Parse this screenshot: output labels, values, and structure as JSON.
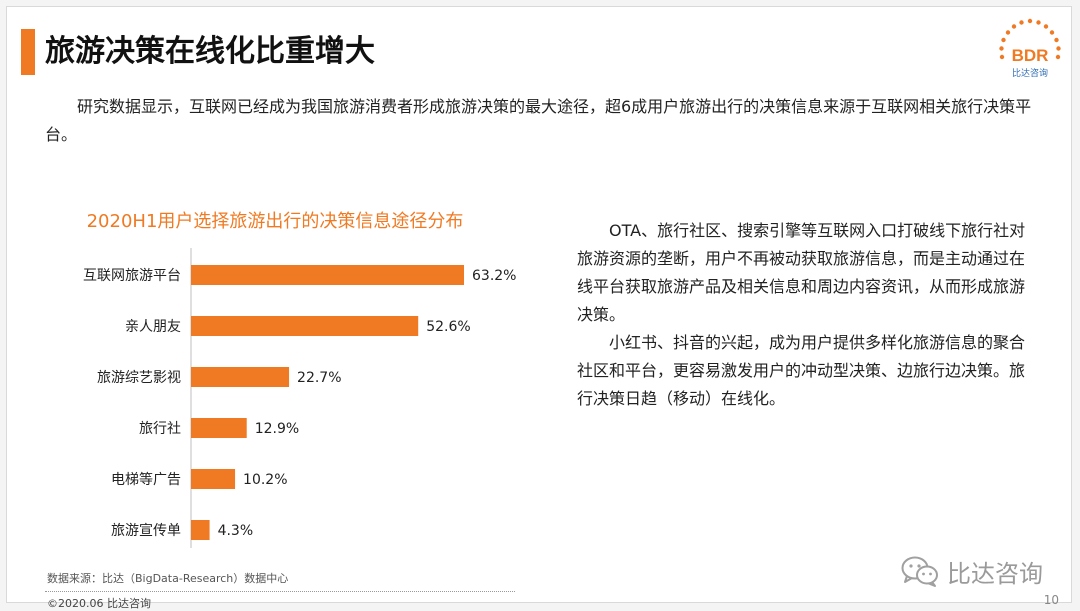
{
  "title": "旅游决策在线化比重增大",
  "logo": {
    "text": "BDR",
    "subtext": "比达咨询",
    "accent": "#f07a23",
    "secondary": "#2f6db5"
  },
  "intro": "研究数据显示，互联网已经成为我国旅游消费者形成旅游决策的最大途径，超6成用户旅游出行的决策信息来源于互联网相关旅行决策平台。",
  "chart_data": {
    "type": "bar",
    "orientation": "horizontal",
    "title": "2020H1用户选择旅游出行的决策信息途径分布",
    "categories": [
      "互联网旅游平台",
      "亲人朋友",
      "旅游综艺影视",
      "旅行社",
      "电梯等广告",
      "旅游宣传单"
    ],
    "values": [
      63.2,
      52.6,
      22.7,
      12.9,
      10.2,
      4.3
    ],
    "value_labels": [
      "63.2%",
      "52.6%",
      "22.7%",
      "12.9%",
      "10.2%",
      "4.3%"
    ],
    "unit": "%",
    "xlim": [
      0,
      70
    ],
    "grid": false,
    "bar_color": "#f07a23"
  },
  "side_paragraphs": [
    "OTA、旅行社区、搜索引擎等互联网入口打破线下旅行社对旅游资源的垄断，用户不再被动获取旅游信息，而是主动通过在线平台获取旅游产品及相关信息和周边内容资讯，从而形成旅游决策。",
    "小红书、抖音的兴起，成为用户提供多样化旅游信息的聚合社区和平台，更容易激发用户的冲动型决策、边旅行边决策。旅行决策日趋（移动）在线化。"
  ],
  "source": "数据来源：比达（BigData-Research）数据中心",
  "footer": "©2020.06  比达咨询",
  "page_number": "10",
  "wechat": {
    "icon": "wechat-icon",
    "name": "比达咨询"
  }
}
